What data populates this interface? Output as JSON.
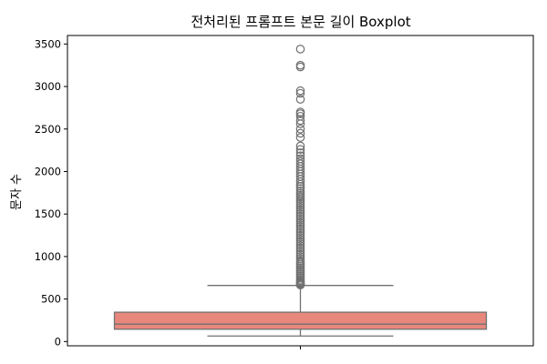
{
  "chart_data": {
    "type": "boxplot",
    "title": "전처리된 프롬프트 본문 길이 Boxplot",
    "xlabel": "",
    "ylabel": "문자 수",
    "ylim": [
      -50,
      3600
    ],
    "yticks": [
      0,
      500,
      1000,
      1500,
      2000,
      2500,
      3000,
      3500
    ],
    "grid": false,
    "colors": {
      "box_fill": "#e8877c",
      "line": "#707070",
      "spine": "#000000"
    },
    "box": {
      "whisker_low": 65,
      "q1": 145,
      "median": 205,
      "q3": 345,
      "whisker_high": 660
    },
    "outliers": [
      665,
      670,
      680,
      690,
      700,
      715,
      730,
      750,
      770,
      790,
      810,
      830,
      850,
      870,
      890,
      910,
      930,
      950,
      975,
      1000,
      1025,
      1050,
      1075,
      1100,
      1125,
      1150,
      1175,
      1200,
      1225,
      1250,
      1275,
      1300,
      1325,
      1350,
      1375,
      1400,
      1425,
      1450,
      1475,
      1500,
      1525,
      1550,
      1575,
      1600,
      1625,
      1650,
      1675,
      1700,
      1720,
      1745,
      1770,
      1800,
      1825,
      1850,
      1880,
      1910,
      1940,
      1970,
      2000,
      2030,
      2060,
      2090,
      2120,
      2150,
      2185,
      2220,
      2260,
      2300,
      2400,
      2450,
      2500,
      2560,
      2600,
      2650,
      2680,
      2700,
      2850,
      2920,
      2950,
      3230,
      3250,
      3440
    ]
  }
}
